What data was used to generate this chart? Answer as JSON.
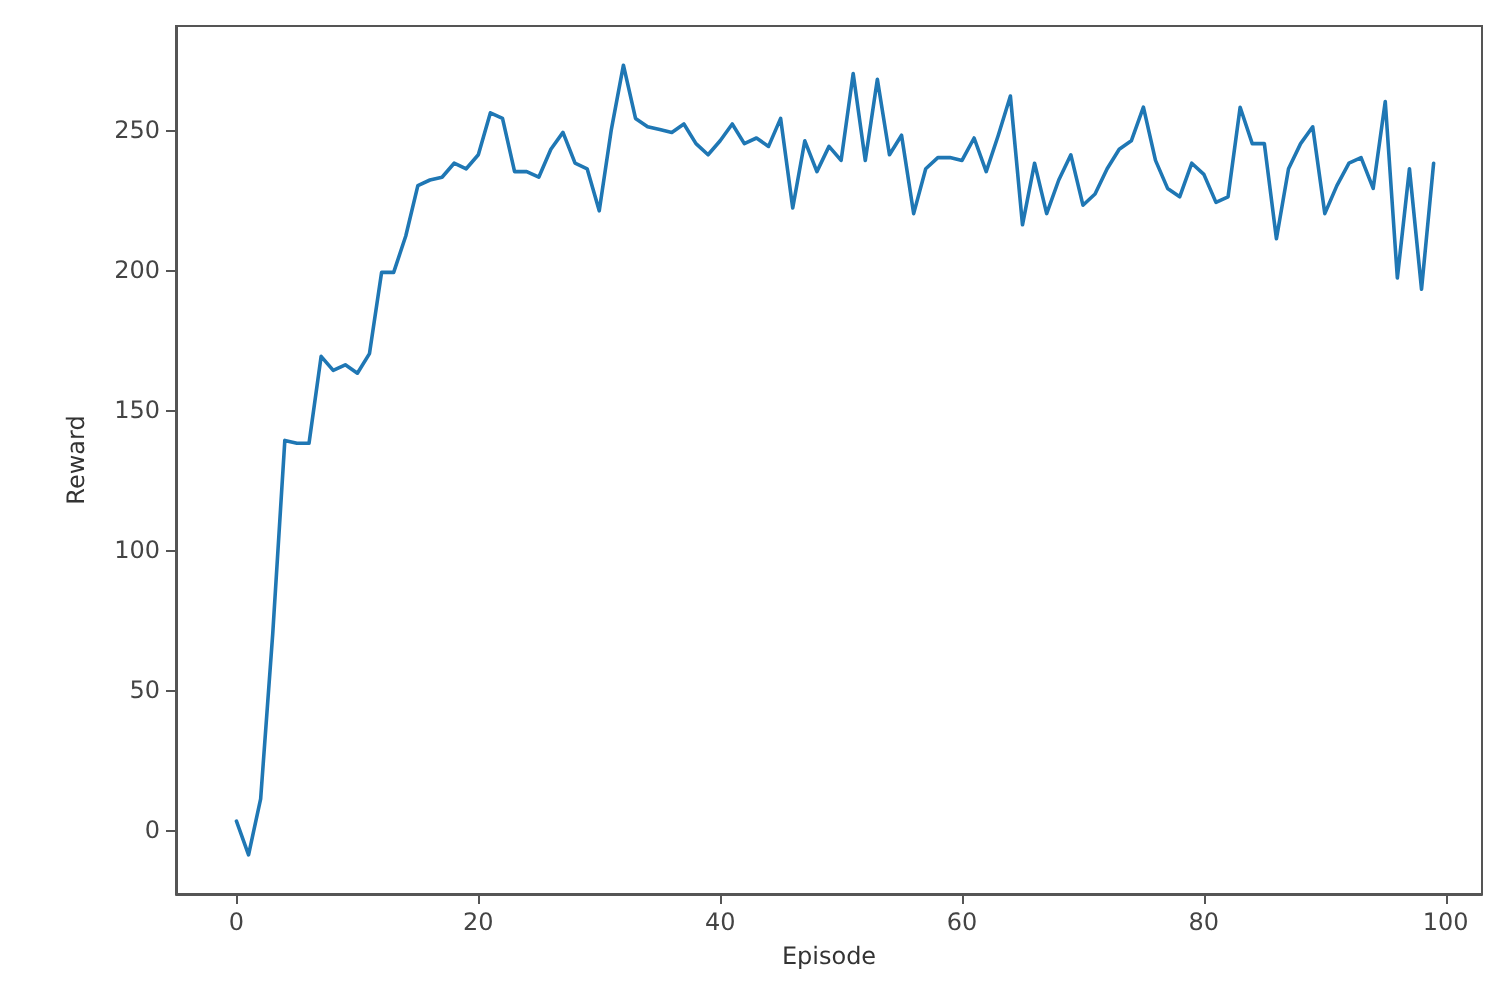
{
  "chart_data": {
    "type": "line",
    "xlabel": "Episode",
    "ylabel": "Reward",
    "x": [
      0,
      1,
      2,
      3,
      4,
      5,
      6,
      7,
      8,
      9,
      10,
      11,
      12,
      13,
      14,
      15,
      16,
      17,
      18,
      19,
      20,
      21,
      22,
      23,
      24,
      25,
      26,
      27,
      28,
      29,
      30,
      31,
      32,
      33,
      34,
      35,
      36,
      37,
      38,
      39,
      40,
      41,
      42,
      43,
      44,
      45,
      46,
      47,
      48,
      49,
      50,
      51,
      52,
      53,
      54,
      55,
      56,
      57,
      58,
      59,
      60,
      61,
      62,
      63,
      64,
      65,
      66,
      67,
      68,
      69,
      70,
      71,
      72,
      73,
      74,
      75,
      76,
      77,
      78,
      79,
      80,
      81,
      82,
      83,
      84,
      85,
      86,
      87,
      88,
      89,
      90,
      91,
      92,
      93,
      94,
      95,
      96,
      97,
      98,
      99
    ],
    "series": [
      {
        "color": "#1f77b4",
        "values": [
          3,
          -9,
          11,
          70,
          139,
          138,
          138,
          169,
          164,
          166,
          163,
          170,
          199,
          199,
          212,
          230,
          232,
          233,
          238,
          236,
          241,
          256,
          254,
          235,
          235,
          233,
          243,
          249,
          238,
          236,
          221,
          250,
          273,
          254,
          251,
          250,
          249,
          252,
          245,
          241,
          246,
          252,
          245,
          247,
          244,
          254,
          222,
          246,
          235,
          244,
          239,
          270,
          239,
          268,
          241,
          248,
          220,
          236,
          240,
          240,
          239,
          247,
          235,
          248,
          262,
          216,
          238,
          220,
          232,
          241,
          223,
          227,
          236,
          243,
          246,
          258,
          239,
          229,
          226,
          238,
          234,
          224,
          226,
          258,
          245,
          245,
          211,
          236,
          245,
          251,
          220,
          230,
          238,
          240,
          229,
          260,
          197,
          236,
          193,
          238
        ]
      }
    ],
    "xlim": [
      -5,
      103
    ],
    "xticks": [
      0,
      20,
      40,
      60,
      80,
      100
    ],
    "ylim": [
      -23,
      287
    ],
    "yticks": [
      0,
      50,
      100,
      150,
      200,
      250
    ],
    "grid": false,
    "marker": "none",
    "line_style": "solid"
  }
}
